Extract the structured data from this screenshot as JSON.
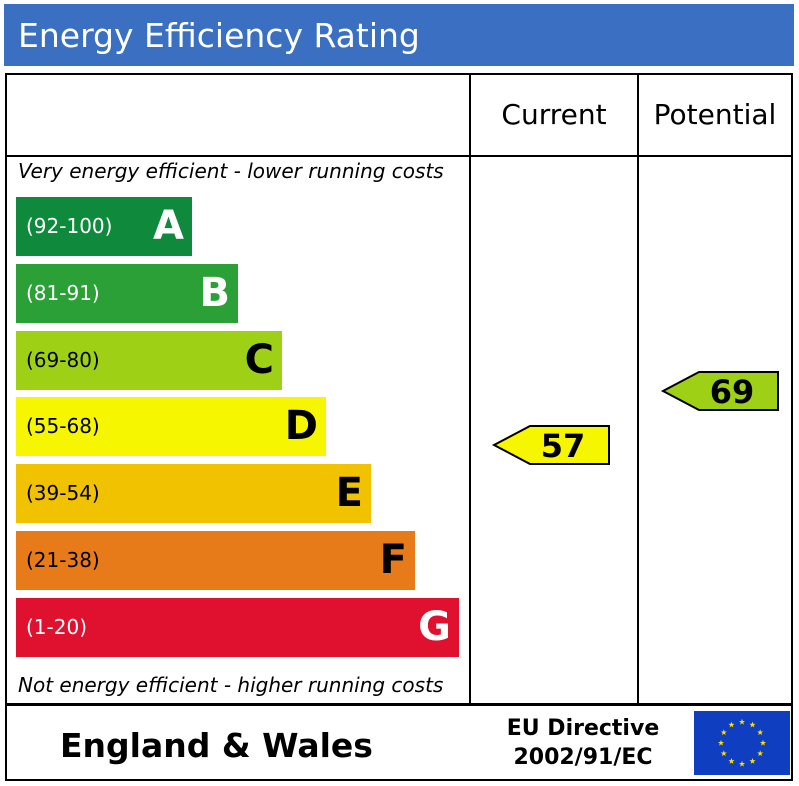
{
  "header": {
    "title": "Energy Efficiency Rating",
    "color": "#3a6fc1"
  },
  "columns": {
    "current": "Current",
    "potential": "Potential"
  },
  "captions": {
    "top": "Very energy efficient - lower running costs",
    "bottom": "Not energy efficient - higher running costs"
  },
  "chart_data": {
    "type": "bar",
    "categories": [
      "A",
      "B",
      "C",
      "D",
      "E",
      "F",
      "G"
    ],
    "bands": [
      {
        "letter": "A",
        "range": "(92-100)",
        "color": "#0f8a3c",
        "text_color": "#ffffff"
      },
      {
        "letter": "B",
        "range": "(81-91)",
        "color": "#2aa037",
        "text_color": "#ffffff"
      },
      {
        "letter": "C",
        "range": "(69-80)",
        "color": "#9ed116",
        "text_color": "#000000"
      },
      {
        "letter": "D",
        "range": "(55-68)",
        "color": "#f6f600",
        "text_color": "#000000"
      },
      {
        "letter": "E",
        "range": "(39-54)",
        "color": "#f1c200",
        "text_color": "#000000"
      },
      {
        "letter": "F",
        "range": "(21-38)",
        "color": "#e77b1a",
        "text_color": "#000000"
      },
      {
        "letter": "G",
        "range": "(1-20)",
        "color": "#e0102f",
        "text_color": "#ffffff"
      }
    ],
    "current": {
      "value": 57,
      "band": "D",
      "color": "#f6f600"
    },
    "potential": {
      "value": 69,
      "band": "C",
      "color": "#9ed116"
    }
  },
  "footer": {
    "region": "England & Wales",
    "directive_line1": "EU Directive",
    "directive_line2": "2002/91/EC",
    "flag_color": "#0f3ec1",
    "star_color": "#ffdd00"
  }
}
